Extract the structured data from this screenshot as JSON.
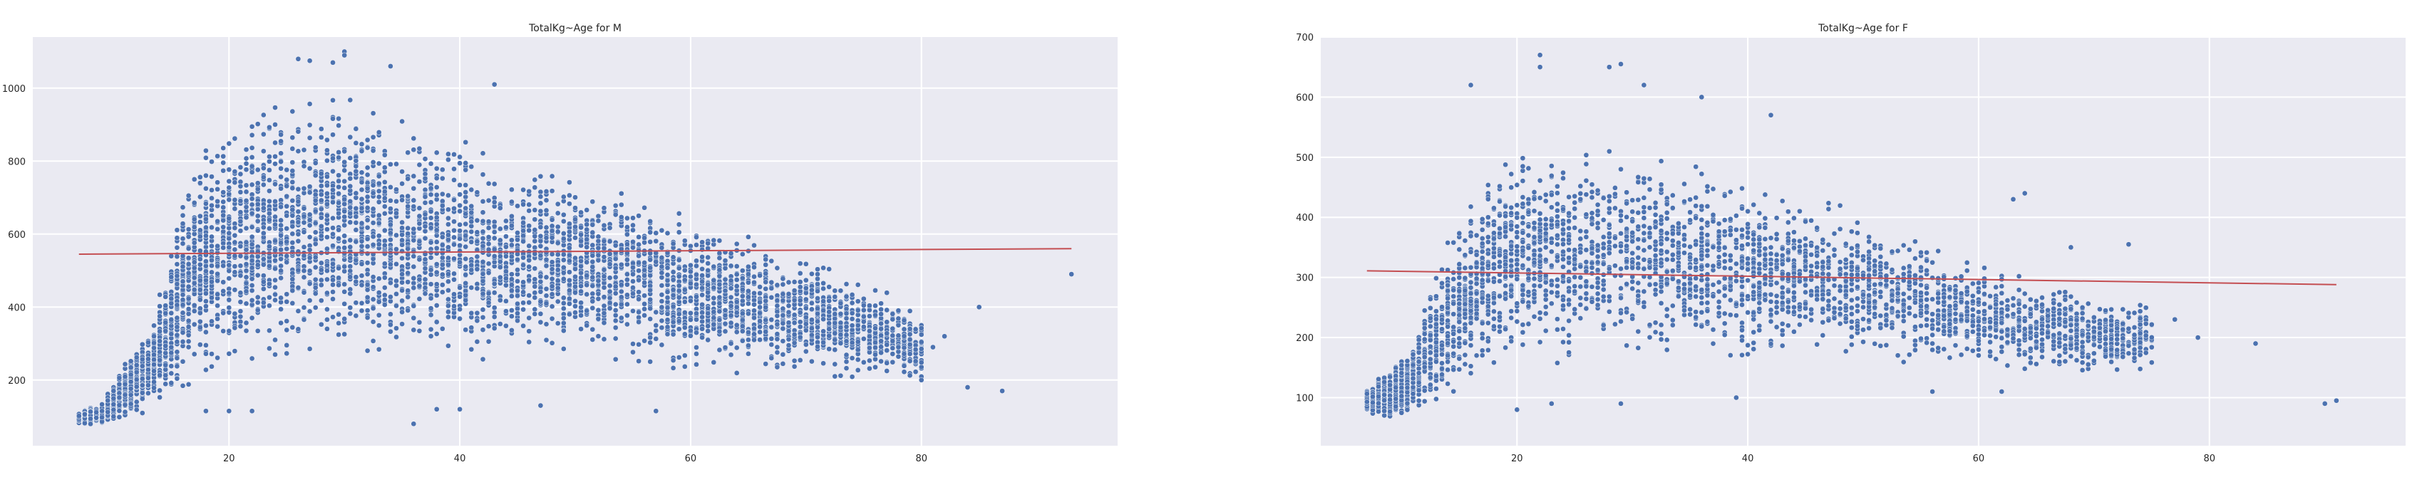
{
  "chart_data": [
    {
      "type": "scatter",
      "title": "TotalKg~Age for M",
      "xlim": [
        3,
        97
      ],
      "ylim": [
        20,
        1140
      ],
      "xticks": [
        20,
        40,
        60,
        80
      ],
      "yticks": [
        200,
        400,
        600,
        800,
        1000
      ],
      "grid": true,
      "series": [
        {
          "kind": "points",
          "density_profile": [
            {
              "x": 7,
              "lo": 80,
              "hi": 110
            },
            {
              "x": 9,
              "lo": 80,
              "hi": 140
            },
            {
              "x": 11,
              "lo": 100,
              "hi": 250
            },
            {
              "x": 13,
              "lo": 120,
              "hi": 340
            },
            {
              "x": 14,
              "lo": 130,
              "hi": 450
            },
            {
              "x": 15,
              "lo": 160,
              "hi": 560
            },
            {
              "x": 16,
              "lo": 190,
              "hi": 730
            },
            {
              "x": 18,
              "lo": 220,
              "hi": 860
            },
            {
              "x": 20,
              "lo": 240,
              "hi": 920
            },
            {
              "x": 24,
              "lo": 250,
              "hi": 960
            },
            {
              "x": 28,
              "lo": 260,
              "hi": 980
            },
            {
              "x": 32,
              "lo": 260,
              "hi": 960
            },
            {
              "x": 36,
              "lo": 260,
              "hi": 900
            },
            {
              "x": 40,
              "lo": 260,
              "hi": 850
            },
            {
              "x": 45,
              "lo": 270,
              "hi": 800
            },
            {
              "x": 50,
              "lo": 280,
              "hi": 760
            },
            {
              "x": 55,
              "lo": 270,
              "hi": 720
            },
            {
              "x": 60,
              "lo": 240,
              "hi": 640
            },
            {
              "x": 65,
              "lo": 220,
              "hi": 580
            },
            {
              "x": 70,
              "lo": 220,
              "hi": 540
            },
            {
              "x": 75,
              "lo": 200,
              "hi": 470
            },
            {
              "x": 80,
              "lo": 200,
              "hi": 380
            }
          ],
          "outliers": [
            [
              30,
              1100
            ],
            [
              30,
              1090
            ],
            [
              29,
              1070
            ],
            [
              26,
              1080
            ],
            [
              27,
              1075
            ],
            [
              34,
              1060
            ],
            [
              43,
              1010
            ],
            [
              36,
              80
            ],
            [
              38,
              120
            ],
            [
              40,
              120
            ],
            [
              57,
              115
            ],
            [
              47,
              130
            ],
            [
              20,
              115
            ],
            [
              22,
              115
            ],
            [
              18,
              115
            ],
            [
              80,
              200
            ],
            [
              81,
              290
            ],
            [
              82,
              320
            ],
            [
              84,
              180
            ],
            [
              85,
              400
            ],
            [
              87,
              170
            ],
            [
              93,
              490
            ]
          ]
        },
        {
          "kind": "regression",
          "x": [
            7,
            93
          ],
          "y": [
            545,
            560
          ]
        }
      ]
    },
    {
      "type": "scatter",
      "title": "TotalKg~Age for F",
      "xlim": [
        3,
        97
      ],
      "ylim": [
        20,
        700
      ],
      "xticks": [
        20,
        40,
        60,
        80
      ],
      "yticks": [
        100,
        200,
        300,
        400,
        500,
        600,
        700
      ],
      "grid": true,
      "series": [
        {
          "kind": "points",
          "density_profile": [
            {
              "x": 7,
              "lo": 80,
              "hi": 110
            },
            {
              "x": 9,
              "lo": 60,
              "hi": 150
            },
            {
              "x": 11,
              "lo": 70,
              "hi": 200
            },
            {
              "x": 13,
              "lo": 90,
              "hi": 300
            },
            {
              "x": 15,
              "lo": 120,
              "hi": 400
            },
            {
              "x": 17,
              "lo": 140,
              "hi": 470
            },
            {
              "x": 20,
              "lo": 160,
              "hi": 510
            },
            {
              "x": 25,
              "lo": 160,
              "hi": 520
            },
            {
              "x": 30,
              "lo": 160,
              "hi": 510
            },
            {
              "x": 35,
              "lo": 160,
              "hi": 490
            },
            {
              "x": 40,
              "lo": 160,
              "hi": 460
            },
            {
              "x": 45,
              "lo": 165,
              "hi": 430
            },
            {
              "x": 50,
              "lo": 165,
              "hi": 400
            },
            {
              "x": 55,
              "lo": 160,
              "hi": 360
            },
            {
              "x": 60,
              "lo": 150,
              "hi": 330
            },
            {
              "x": 65,
              "lo": 140,
              "hi": 300
            },
            {
              "x": 70,
              "lo": 140,
              "hi": 270
            },
            {
              "x": 75,
              "lo": 140,
              "hi": 250
            }
          ],
          "outliers": [
            [
              22,
              670
            ],
            [
              22,
              650
            ],
            [
              28,
              650
            ],
            [
              29,
              655
            ],
            [
              16,
              620
            ],
            [
              31,
              620
            ],
            [
              36,
              600
            ],
            [
              42,
              570
            ],
            [
              64,
              440
            ],
            [
              63,
              430
            ],
            [
              68,
              350
            ],
            [
              73,
              355
            ],
            [
              20,
              80
            ],
            [
              23,
              90
            ],
            [
              29,
              90
            ],
            [
              39,
              100
            ],
            [
              56,
              110
            ],
            [
              62,
              110
            ],
            [
              77,
              230
            ],
            [
              79,
              200
            ],
            [
              84,
              190
            ],
            [
              90,
              90
            ],
            [
              91,
              95
            ]
          ]
        },
        {
          "kind": "regression",
          "x": [
            7,
            91
          ],
          "y": [
            311,
            288
          ]
        }
      ]
    }
  ]
}
